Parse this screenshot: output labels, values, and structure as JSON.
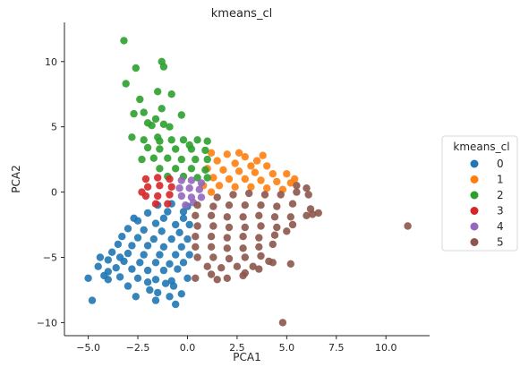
{
  "chart_data": {
    "type": "scatter",
    "title": "kmeans_cl",
    "xlabel": "PCA1",
    "ylabel": "PCA2",
    "xlim": [
      -6.2,
      12.2
    ],
    "ylim": [
      -11.0,
      13.0
    ],
    "xticks": [
      -5.0,
      -2.5,
      0.0,
      2.5,
      5.0,
      7.5,
      10.0
    ],
    "xtick_labels": [
      "−5.0",
      "−2.5",
      "0.0",
      "2.5",
      "5.0",
      "7.5",
      "10.0"
    ],
    "yticks": [
      -10,
      -5,
      0,
      5,
      10
    ],
    "ytick_labels": [
      "−10",
      "−5",
      "0",
      "5",
      "10"
    ],
    "grid": false,
    "legend": {
      "title": "kmeans_cl",
      "placement": "right",
      "entries": [
        "0",
        "1",
        "2",
        "3",
        "4",
        "5"
      ]
    },
    "series": [
      {
        "name": "0",
        "color": "#1f77b4",
        "points": [
          [
            -1.5,
            -1.0
          ],
          [
            -0.8,
            -0.9
          ],
          [
            0.0,
            -1.1
          ],
          [
            -1.0,
            -1.5
          ],
          [
            -2.0,
            -1.6
          ],
          [
            -1.2,
            -2.0
          ],
          [
            -0.2,
            -2.0
          ],
          [
            -2.5,
            -2.2
          ],
          [
            -1.6,
            -2.4
          ],
          [
            -0.6,
            -2.5
          ],
          [
            0.1,
            -2.5
          ],
          [
            -3.0,
            -2.8
          ],
          [
            -2.2,
            -2.9
          ],
          [
            -1.3,
            -3.0
          ],
          [
            -0.4,
            -3.1
          ],
          [
            -3.3,
            -3.4
          ],
          [
            -2.5,
            -3.5
          ],
          [
            -1.7,
            -3.6
          ],
          [
            -0.8,
            -3.6
          ],
          [
            0.0,
            -3.6
          ],
          [
            -3.5,
            -4.0
          ],
          [
            -2.8,
            -4.1
          ],
          [
            -2.0,
            -4.1
          ],
          [
            -1.2,
            -4.2
          ],
          [
            -0.3,
            -4.2
          ],
          [
            -3.8,
            -4.6
          ],
          [
            -3.0,
            -4.7
          ],
          [
            -2.2,
            -4.8
          ],
          [
            -1.4,
            -4.8
          ],
          [
            -0.6,
            -4.8
          ],
          [
            0.1,
            -4.8
          ],
          [
            -4.0,
            -5.2
          ],
          [
            -3.2,
            -5.3
          ],
          [
            -2.4,
            -5.4
          ],
          [
            -1.6,
            -5.4
          ],
          [
            -0.9,
            -5.5
          ],
          [
            -0.2,
            -5.4
          ],
          [
            -3.6,
            -5.8
          ],
          [
            -2.8,
            -5.9
          ],
          [
            -2.0,
            -6.0
          ],
          [
            -1.2,
            -6.0
          ],
          [
            -0.5,
            -5.9
          ],
          [
            -4.5,
            -5.7
          ],
          [
            -5.0,
            -6.6
          ],
          [
            -4.2,
            -6.4
          ],
          [
            -3.4,
            -6.5
          ],
          [
            -2.5,
            -6.6
          ],
          [
            -1.6,
            -6.7
          ],
          [
            -0.8,
            -6.8
          ],
          [
            0.0,
            -6.6
          ],
          [
            -4.0,
            -6.1
          ],
          [
            -2.0,
            -6.9
          ],
          [
            -1.1,
            -7.0
          ],
          [
            -3.0,
            -7.2
          ],
          [
            -1.9,
            -7.5
          ],
          [
            -0.7,
            -7.2
          ],
          [
            -4.0,
            -6.7
          ],
          [
            -1.5,
            -7.7
          ],
          [
            -0.3,
            -7.8
          ],
          [
            -2.6,
            -8.0
          ],
          [
            -1.6,
            -8.3
          ],
          [
            -0.9,
            -8.0
          ],
          [
            -0.6,
            -8.6
          ],
          [
            -4.8,
            -8.3
          ],
          [
            -3.4,
            -5.0
          ],
          [
            -4.4,
            -5.0
          ],
          [
            -2.7,
            -2.0
          ],
          [
            -0.2,
            -1.5
          ]
        ]
      },
      {
        "name": "1",
        "color": "#ff7f0e",
        "points": [
          [
            1.2,
            3.0
          ],
          [
            2.0,
            2.9
          ],
          [
            2.9,
            2.7
          ],
          [
            3.5,
            2.4
          ],
          [
            1.5,
            2.4
          ],
          [
            2.4,
            2.2
          ],
          [
            3.2,
            2.0
          ],
          [
            4.0,
            2.0
          ],
          [
            1.0,
            1.8
          ],
          [
            1.8,
            1.7
          ],
          [
            2.6,
            1.6
          ],
          [
            3.4,
            1.5
          ],
          [
            4.3,
            1.4
          ],
          [
            5.0,
            1.4
          ],
          [
            1.3,
            1.1
          ],
          [
            2.1,
            1.0
          ],
          [
            2.9,
            1.0
          ],
          [
            3.7,
            0.9
          ],
          [
            4.5,
            0.8
          ],
          [
            5.2,
            0.7
          ],
          [
            0.8,
            0.5
          ],
          [
            1.6,
            0.5
          ],
          [
            2.4,
            0.4
          ],
          [
            3.2,
            0.4
          ],
          [
            4.0,
            0.3
          ],
          [
            4.8,
            0.2
          ],
          [
            5.4,
            1.0
          ],
          [
            3.8,
            2.8
          ],
          [
            2.6,
            3.0
          ],
          [
            1.2,
            0.0
          ]
        ]
      },
      {
        "name": "2",
        "color": "#2ca02c",
        "points": [
          [
            -3.2,
            11.6
          ],
          [
            -2.6,
            9.5
          ],
          [
            -3.1,
            8.3
          ],
          [
            -1.3,
            10.0
          ],
          [
            -1.2,
            9.6
          ],
          [
            -2.4,
            7.1
          ],
          [
            -1.5,
            7.7
          ],
          [
            -0.8,
            7.5
          ],
          [
            -2.7,
            6.0
          ],
          [
            -2.2,
            6.1
          ],
          [
            -1.3,
            6.4
          ],
          [
            -0.3,
            5.9
          ],
          [
            -1.8,
            5.1
          ],
          [
            -1.6,
            5.6
          ],
          [
            -1.2,
            5.2
          ],
          [
            -0.9,
            5.0
          ],
          [
            -2.8,
            4.2
          ],
          [
            -2.2,
            4.0
          ],
          [
            -1.5,
            4.2
          ],
          [
            -0.8,
            4.0
          ],
          [
            -0.2,
            4.0
          ],
          [
            0.5,
            4.0
          ],
          [
            1.0,
            3.9
          ],
          [
            -2.0,
            3.4
          ],
          [
            -1.4,
            3.3
          ],
          [
            -0.6,
            3.3
          ],
          [
            0.2,
            3.3
          ],
          [
            0.9,
            3.2
          ],
          [
            -2.3,
            2.5
          ],
          [
            -1.7,
            2.6
          ],
          [
            -1.0,
            2.6
          ],
          [
            -0.3,
            2.5
          ],
          [
            0.4,
            2.5
          ],
          [
            1.0,
            2.5
          ],
          [
            -1.4,
            1.8
          ],
          [
            -0.6,
            1.8
          ],
          [
            0.2,
            1.8
          ],
          [
            0.9,
            1.7
          ],
          [
            -1.0,
            1.2
          ],
          [
            -0.2,
            1.2
          ],
          [
            0.5,
            1.1
          ],
          [
            1.0,
            1.1
          ],
          [
            -2.0,
            5.3
          ],
          [
            -1.4,
            3.9
          ],
          [
            0.1,
            3.6
          ]
        ]
      },
      {
        "name": "3",
        "color": "#d62728",
        "points": [
          [
            -2.1,
            1.0
          ],
          [
            -1.5,
            1.1
          ],
          [
            -0.9,
            1.0
          ],
          [
            -2.0,
            0.4
          ],
          [
            -1.4,
            0.5
          ],
          [
            -0.8,
            0.4
          ],
          [
            -2.1,
            -0.3
          ],
          [
            -1.5,
            -0.3
          ],
          [
            -0.9,
            -0.2
          ],
          [
            -1.6,
            -0.9
          ],
          [
            -1.0,
            -0.9
          ],
          [
            -2.3,
            0.0
          ]
        ]
      },
      {
        "name": "4",
        "color": "#9467bd",
        "points": [
          [
            -0.3,
            0.9
          ],
          [
            0.2,
            0.9
          ],
          [
            0.7,
            0.7
          ],
          [
            -0.4,
            0.3
          ],
          [
            0.1,
            0.3
          ],
          [
            0.6,
            0.2
          ],
          [
            -0.3,
            -0.3
          ],
          [
            0.2,
            -0.4
          ],
          [
            0.7,
            -0.4
          ],
          [
            -0.1,
            -1.0
          ],
          [
            0.3,
            -0.8
          ]
        ]
      },
      {
        "name": "5",
        "color": "#8c564b",
        "points": [
          [
            1.5,
            -0.4
          ],
          [
            2.3,
            -0.2
          ],
          [
            3.1,
            -0.1
          ],
          [
            3.9,
            -0.2
          ],
          [
            4.7,
            -0.2
          ],
          [
            5.5,
            0.0
          ],
          [
            6.1,
            -0.2
          ],
          [
            0.5,
            -1.0
          ],
          [
            1.3,
            -1.1
          ],
          [
            2.1,
            -1.0
          ],
          [
            2.9,
            -1.0
          ],
          [
            3.7,
            -1.0
          ],
          [
            4.5,
            -1.1
          ],
          [
            5.3,
            -0.9
          ],
          [
            6.2,
            -1.3
          ],
          [
            6.6,
            -1.6
          ],
          [
            0.4,
            -1.8
          ],
          [
            1.2,
            -1.8
          ],
          [
            2.0,
            -1.9
          ],
          [
            2.8,
            -1.9
          ],
          [
            3.6,
            -1.8
          ],
          [
            4.4,
            -1.9
          ],
          [
            5.2,
            -1.9
          ],
          [
            6.0,
            -1.8
          ],
          [
            0.5,
            -2.6
          ],
          [
            1.3,
            -2.6
          ],
          [
            2.1,
            -2.7
          ],
          [
            2.9,
            -2.7
          ],
          [
            3.7,
            -2.6
          ],
          [
            4.5,
            -2.7
          ],
          [
            5.3,
            -2.5
          ],
          [
            0.4,
            -3.4
          ],
          [
            1.2,
            -3.4
          ],
          [
            2.0,
            -3.5
          ],
          [
            2.8,
            -3.4
          ],
          [
            3.6,
            -3.5
          ],
          [
            4.4,
            -3.3
          ],
          [
            5.0,
            -3.0
          ],
          [
            0.4,
            -4.2
          ],
          [
            1.2,
            -4.2
          ],
          [
            2.0,
            -4.3
          ],
          [
            2.8,
            -4.3
          ],
          [
            3.6,
            -4.2
          ],
          [
            4.3,
            -4.0
          ],
          [
            0.5,
            -5.0
          ],
          [
            1.3,
            -5.0
          ],
          [
            2.1,
            -5.1
          ],
          [
            2.9,
            -5.0
          ],
          [
            3.7,
            -4.9
          ],
          [
            1.0,
            -5.7
          ],
          [
            1.7,
            -5.8
          ],
          [
            2.5,
            -5.7
          ],
          [
            3.3,
            -5.7
          ],
          [
            4.1,
            -5.3
          ],
          [
            4.3,
            -5.4
          ],
          [
            5.2,
            -5.5
          ],
          [
            1.2,
            -6.3
          ],
          [
            2.0,
            -6.6
          ],
          [
            2.9,
            -6.2
          ],
          [
            1.5,
            -6.7
          ],
          [
            0.4,
            -6.6
          ],
          [
            2.8,
            -6.4
          ],
          [
            3.6,
            -5.9
          ],
          [
            5.5,
            0.5
          ],
          [
            6.0,
            0.3
          ],
          [
            4.8,
            -10.0
          ],
          [
            11.1,
            -2.6
          ],
          [
            6.3,
            -1.7
          ]
        ]
      }
    ]
  }
}
